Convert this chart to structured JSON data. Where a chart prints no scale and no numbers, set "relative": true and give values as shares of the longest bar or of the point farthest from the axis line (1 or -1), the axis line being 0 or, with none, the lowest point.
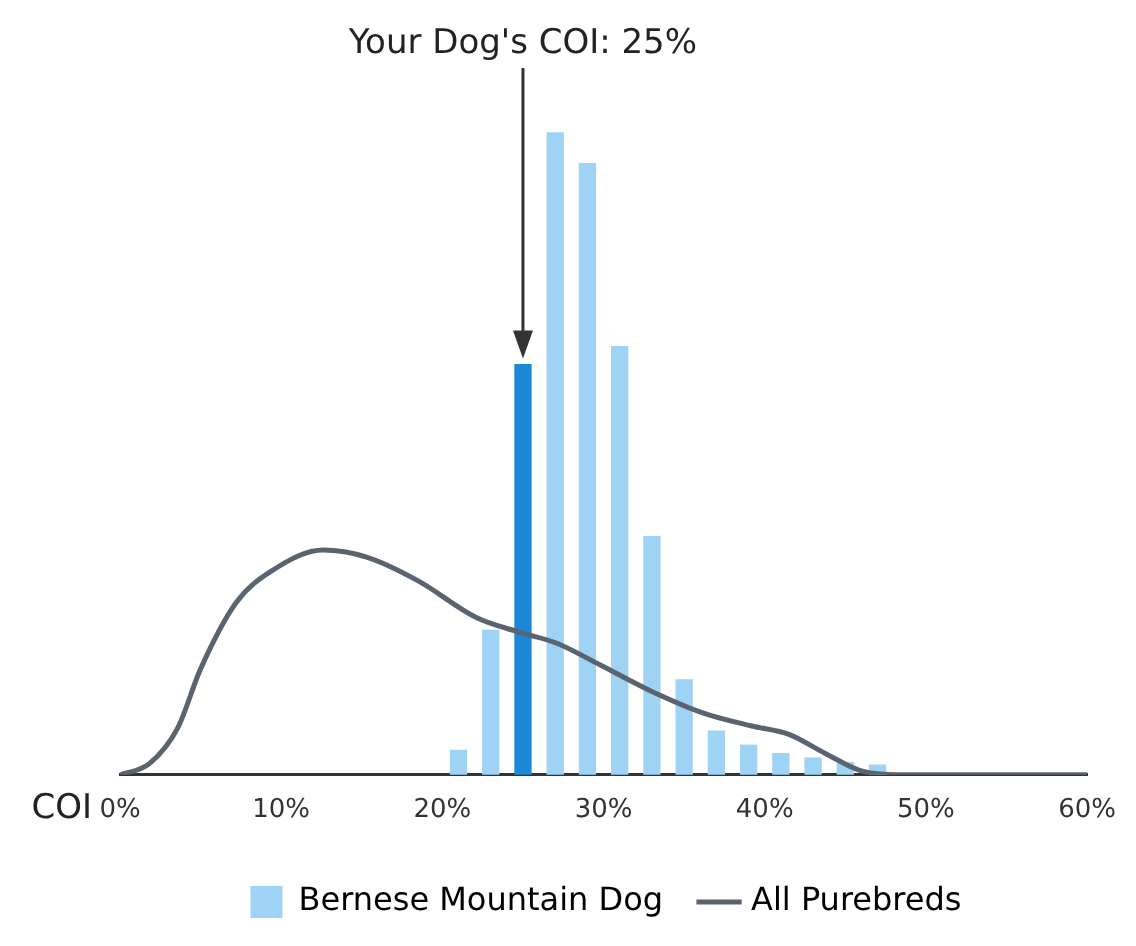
{
  "chart_data": {
    "type": "bar",
    "relative": true,
    "xlabel": "COI",
    "xlim": [
      0,
      60
    ],
    "xticks": [
      {
        "value": 0,
        "label": "0%"
      },
      {
        "value": 10,
        "label": "10%"
      },
      {
        "value": 20,
        "label": "20%"
      },
      {
        "value": 30,
        "label": "30%"
      },
      {
        "value": 40,
        "label": "40%"
      },
      {
        "value": 50,
        "label": "50%"
      },
      {
        "value": 60,
        "label": "60%"
      }
    ],
    "legend": "bottom",
    "grid": false,
    "annotations": [
      "Your Dog's COI: 25%"
    ],
    "series": [
      {
        "name": "Bernese Mountain Dog",
        "color": "#9fd3f5",
        "x": [
          21,
          23,
          25,
          27,
          29,
          31,
          33,
          35,
          37,
          39,
          41,
          43,
          45,
          47
        ],
        "values": [
          0.038,
          0.225,
          0.639,
          1,
          0.952,
          0.667,
          0.371,
          0.148,
          0.068,
          0.046,
          0.033,
          0.026,
          0.019,
          0.015
        ],
        "colors": [
          "#9fd3f5",
          "#9fd3f5",
          "#1e88d8",
          "#9fd3f5",
          "#9fd3f5",
          "#9fd3f5",
          "#9fd3f5",
          "#9fd3f5",
          "#9fd3f5",
          "#9fd3f5",
          "#9fd3f5",
          "#9fd3f5",
          "#9fd3f5",
          "#9fd3f5"
        ]
      },
      {
        "name": "All Purebreds",
        "type": "line",
        "color": "#5a6470",
        "x": [
          0,
          1.8,
          3.6,
          5,
          7.2,
          9.5,
          12.6,
          15.3,
          18.5,
          22.1,
          24.8,
          27.1,
          29.8,
          32.9,
          36.1,
          39.2,
          41.5,
          43.7,
          46,
          48.3,
          60
        ],
        "values": [
          0,
          0.017,
          0.074,
          0.165,
          0.268,
          0.319,
          0.35,
          0.339,
          0.302,
          0.245,
          0.222,
          0.205,
          0.171,
          0.131,
          0.097,
          0.076,
          0.063,
          0.034,
          0.006,
          0,
          0
        ]
      }
    ]
  }
}
